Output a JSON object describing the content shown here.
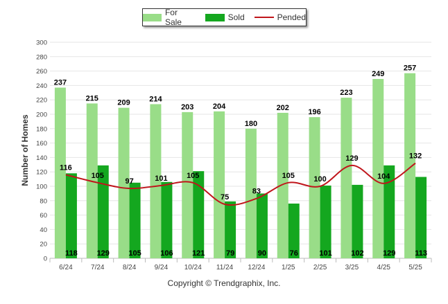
{
  "chart_data": {
    "type": "bar",
    "ylabel": "Number of Homes",
    "xlabel": "",
    "ylim": [
      0,
      300
    ],
    "yticks": [
      0,
      20,
      40,
      60,
      80,
      100,
      120,
      140,
      160,
      180,
      200,
      220,
      240,
      260,
      280,
      300
    ],
    "grid": true,
    "legend_position": "top-center",
    "categories": [
      "6/24",
      "7/24",
      "8/24",
      "9/24",
      "10/24",
      "11/24",
      "12/24",
      "1/25",
      "2/25",
      "3/25",
      "4/25",
      "5/25"
    ],
    "series": [
      {
        "name": "For Sale",
        "kind": "bar",
        "color": "#99dd88",
        "values": [
          237,
          215,
          209,
          214,
          203,
          204,
          180,
          202,
          196,
          223,
          249,
          257
        ]
      },
      {
        "name": "Sold",
        "kind": "bar",
        "color": "#14a71f",
        "values": [
          118,
          129,
          105,
          106,
          121,
          79,
          90,
          76,
          101,
          102,
          129,
          113
        ]
      },
      {
        "name": "Pended",
        "kind": "line",
        "color": "#c0151b",
        "values": [
          116,
          105,
          97,
          101,
          105,
          75,
          83,
          105,
          100,
          129,
          104,
          132
        ]
      }
    ]
  },
  "footer": {
    "copyright": "Copyright © Trendgraphix, Inc."
  }
}
